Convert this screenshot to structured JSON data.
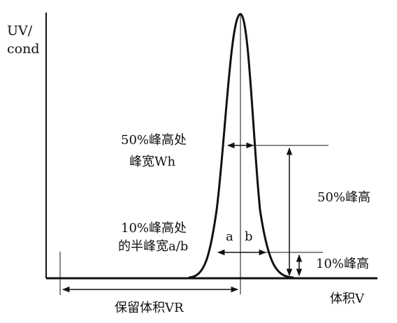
{
  "axes": {
    "y_label_line1": "UV/",
    "y_label_line2": "cond",
    "x_label": "体积V"
  },
  "labels": {
    "half_height_width_line1": "50%峰高处",
    "half_height_width_line2": "峰宽Wh",
    "ten_percent_line1": "10%峰高处",
    "ten_percent_line2": "的半峰宽a/b",
    "left_half": "a",
    "right_half": "b",
    "fifty_percent_height": "50%峰高",
    "ten_percent_height": "10%峰高",
    "retention_volume": "保留体积VR"
  },
  "colors": {
    "ink": "#111111",
    "background": "#ffffff"
  }
}
